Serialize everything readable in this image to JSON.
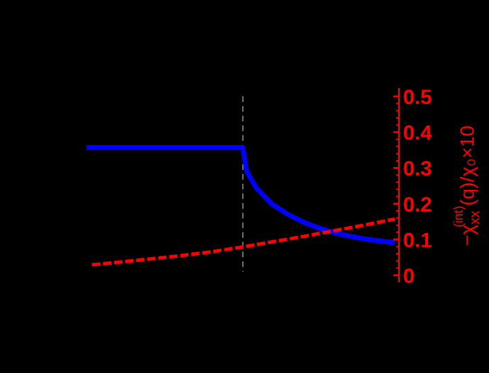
{
  "chart_data": {
    "type": "line",
    "title": "",
    "background": "#000000",
    "xlabel": "",
    "ylabel_left": "",
    "ylabel_right": {
      "prefix": "−χ",
      "subscript": "xx",
      "superscript": "(int)",
      "suffix": "(q)/χ₀×10"
    },
    "right_axis": {
      "color": "#ff0000",
      "ylim": [
        0,
        0.5
      ],
      "ticks": [
        "0",
        "0.1",
        "0.2",
        "0.3",
        "0.4",
        "0.5"
      ],
      "tick_values": [
        0,
        0.1,
        0.2,
        0.3,
        0.4,
        0.5
      ],
      "minor_step": 0.02
    },
    "x_norm_range": [
      0,
      1
    ],
    "vertical_marker": {
      "x_norm": 0.507,
      "style": "dashed",
      "color": "#999999"
    },
    "series": [
      {
        "name": "blue-solid",
        "color": "#0000ff",
        "style": "solid",
        "axis": "right",
        "x_norm": [
          0.0,
          0.1,
          0.2,
          0.3,
          0.4,
          0.507,
          0.52,
          0.55,
          0.6,
          0.65,
          0.7,
          0.75,
          0.8,
          0.85,
          0.9,
          0.95,
          1.0
        ],
        "values": [
          0.357,
          0.357,
          0.357,
          0.357,
          0.357,
          0.357,
          0.29,
          0.245,
          0.2,
          0.172,
          0.15,
          0.133,
          0.12,
          0.11,
          0.102,
          0.096,
          0.091
        ]
      },
      {
        "name": "red-dashed",
        "color": "#ff0000",
        "style": "dashed",
        "axis": "right",
        "x_norm": [
          0.018,
          0.1,
          0.2,
          0.3,
          0.4,
          0.507,
          0.6,
          0.7,
          0.8,
          0.9,
          1.0
        ],
        "values": [
          0.029,
          0.036,
          0.045,
          0.054,
          0.065,
          0.079,
          0.093,
          0.108,
          0.124,
          0.14,
          0.157
        ]
      }
    ]
  }
}
